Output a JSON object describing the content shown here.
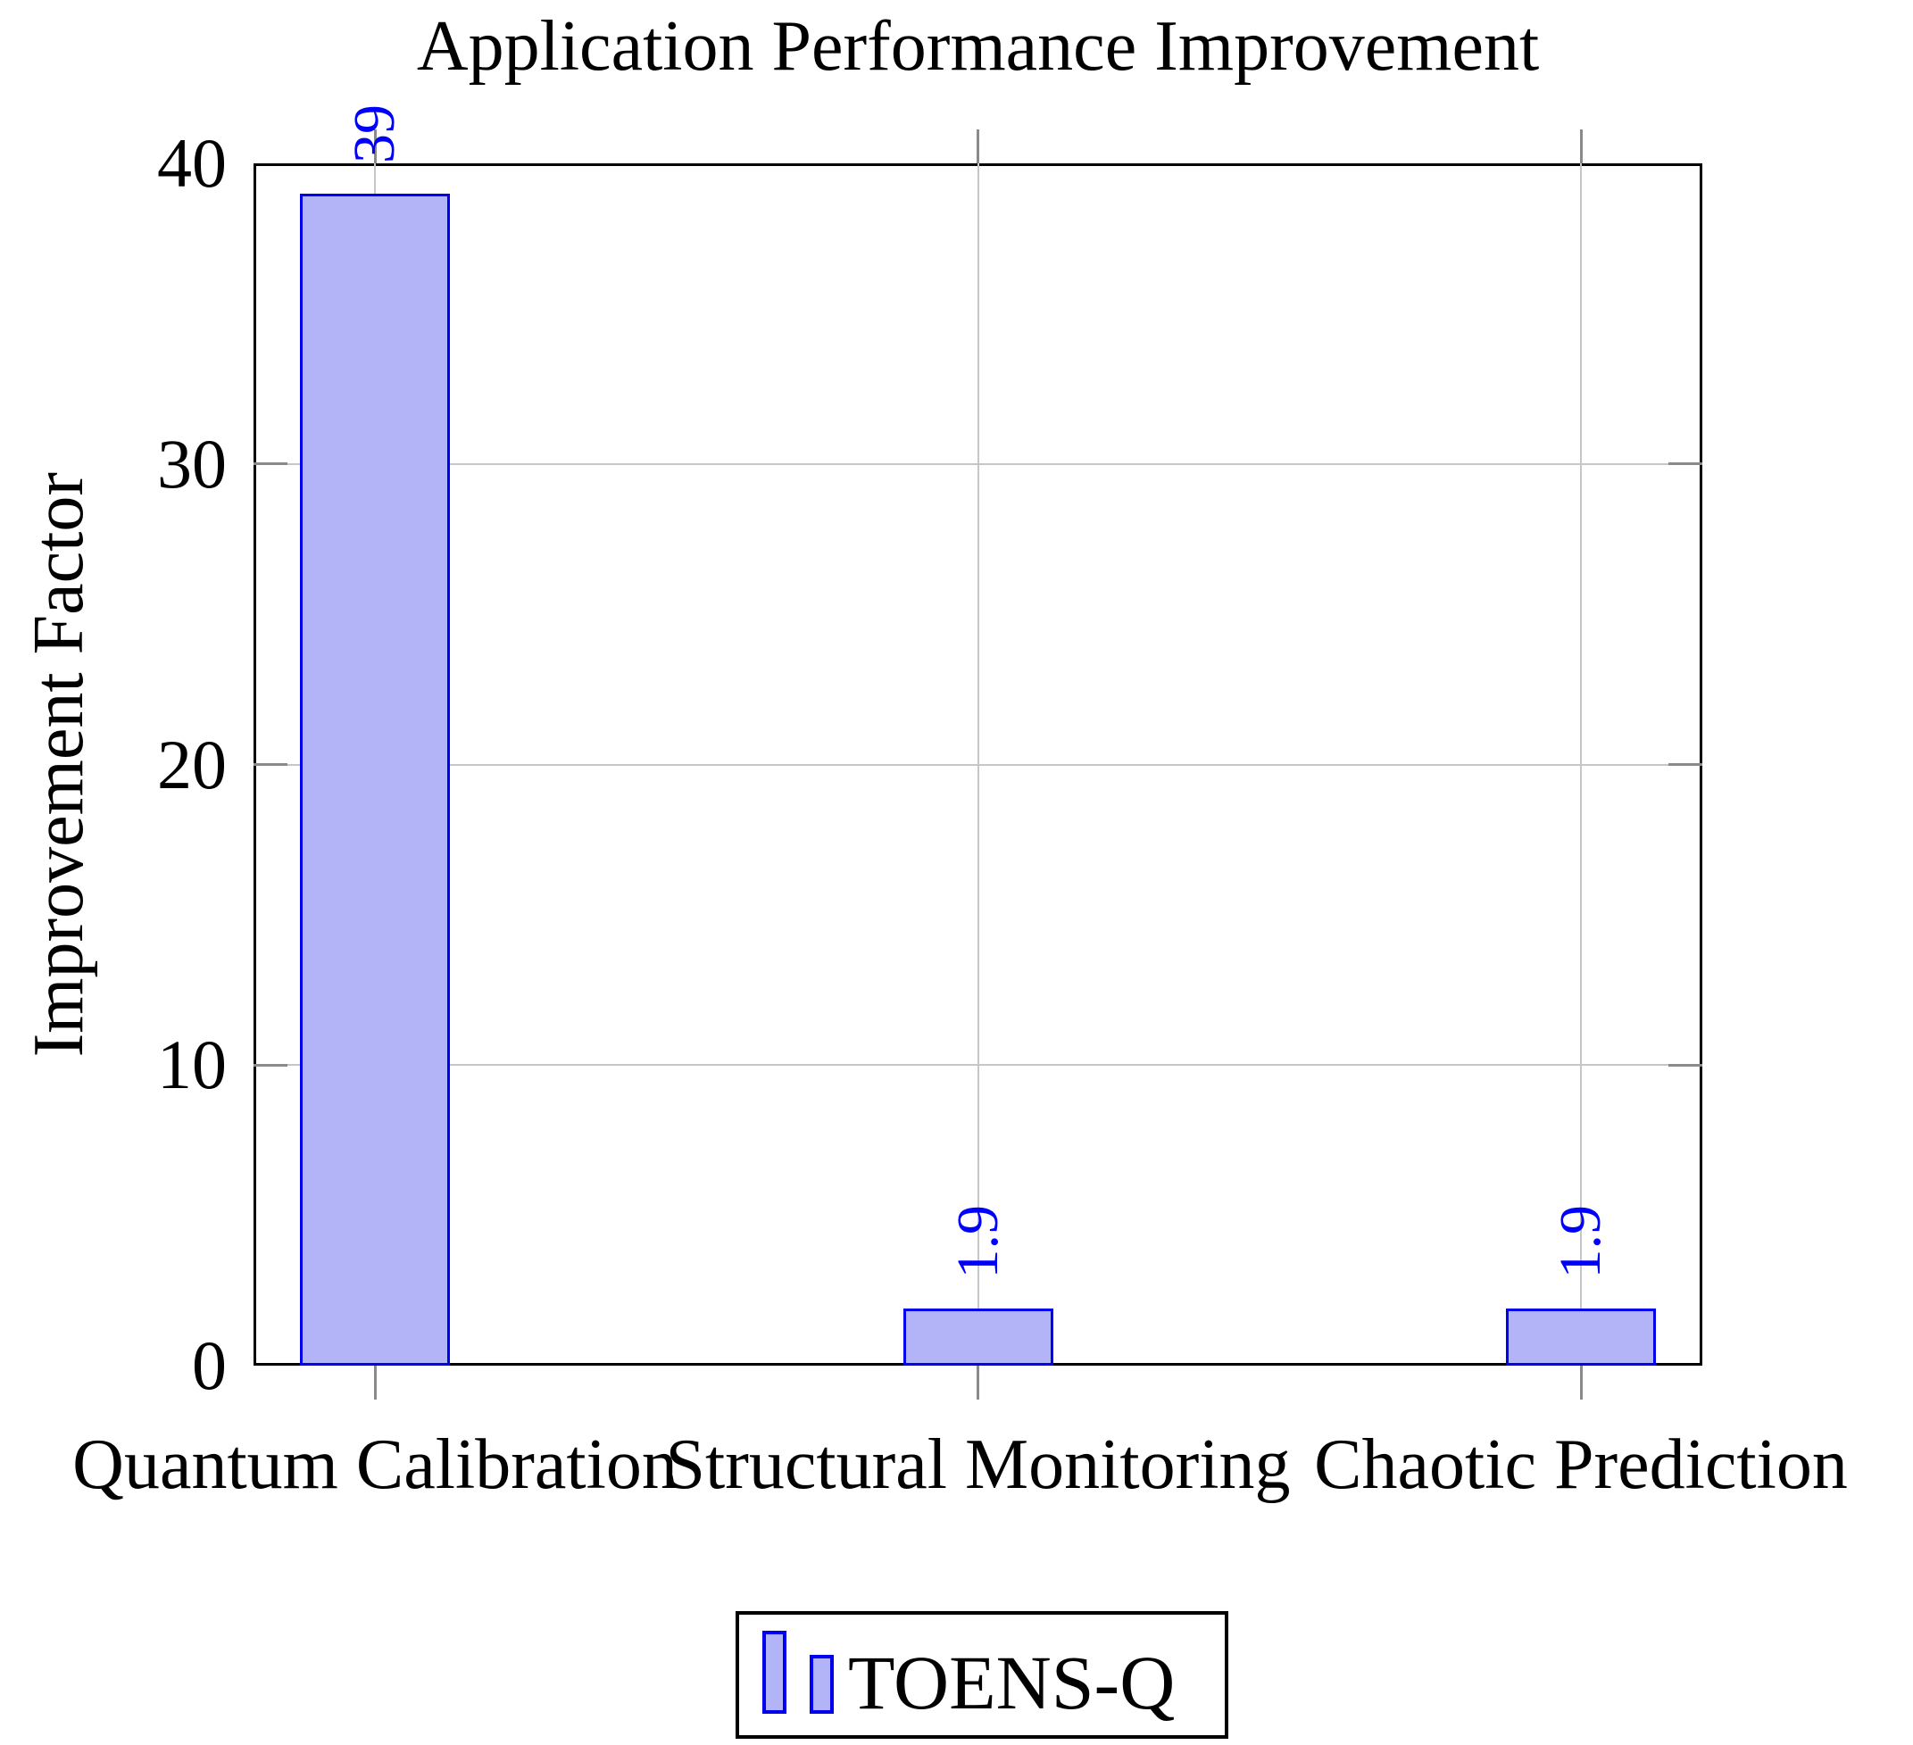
{
  "chart_data": {
    "type": "bar",
    "title": "Application Performance Improvement",
    "ylabel": "Improvement Factor",
    "xlabel": "",
    "categories": [
      "Quantum Calibration",
      "Structural Monitoring",
      "Chaotic Prediction"
    ],
    "series": [
      {
        "name": "TOENS-Q",
        "values": [
          39,
          1.9,
          1.9
        ],
        "value_labels": [
          "39",
          "1.9",
          "1.9"
        ]
      }
    ],
    "ylim": [
      0,
      40
    ],
    "yticks": [
      0,
      10,
      20,
      30,
      40
    ],
    "ytick_labels": [
      "0",
      "10",
      "20",
      "30",
      "40"
    ],
    "grid": true,
    "value_label_rotation": 90,
    "legend_position": "below-center",
    "colors": {
      "bar_fill": "#b3b3f8",
      "bar_border": "#0000ee",
      "value_label": "#0000ff",
      "grid_line": "#c6c6c6",
      "tick_mark": "#8a8a8a",
      "axis_frame": "#000000",
      "text": "#000000"
    }
  }
}
